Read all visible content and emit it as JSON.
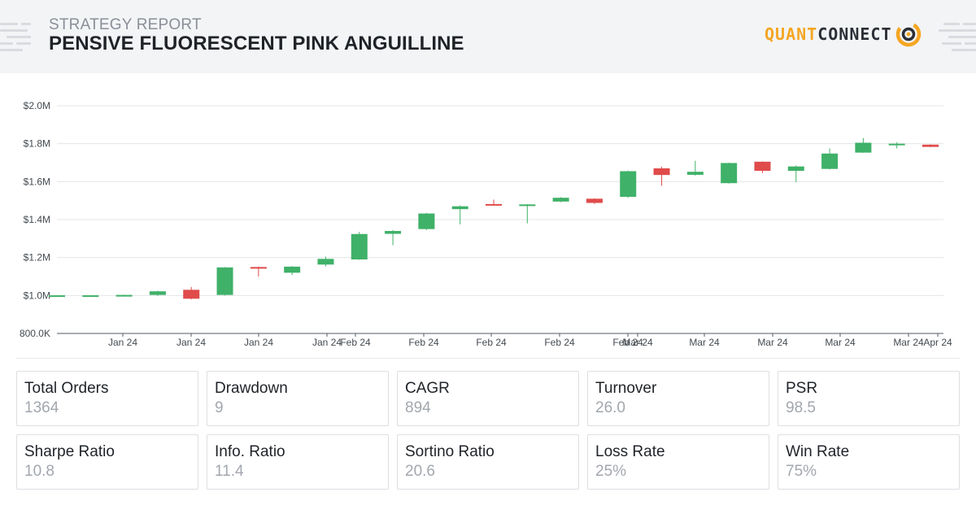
{
  "header": {
    "kicker": "STRATEGY REPORT",
    "title": "PENSIVE FLUORESCENT PINK ANGUILLINE",
    "logo_quant": "QUANT",
    "logo_connect": "CONNECT"
  },
  "colors": {
    "up": "#3fb168",
    "down": "#e04b4b",
    "grid": "#e3e5e8",
    "axis": "#555a60",
    "logo_orange": "#f5a623"
  },
  "chart_data": {
    "type": "candlestick",
    "title": "",
    "xlabel": "",
    "ylabel": "",
    "ylim": [
      800000,
      2000000
    ],
    "y_ticks": [
      {
        "v": 2000000,
        "label": "$2.0M"
      },
      {
        "v": 1800000,
        "label": "$1.8M"
      },
      {
        "v": 1600000,
        "label": "$1.6M"
      },
      {
        "v": 1400000,
        "label": "$1.4M"
      },
      {
        "v": 1200000,
        "label": "$1.2M"
      },
      {
        "v": 1000000,
        "label": "$1.0M"
      },
      {
        "v": 800000,
        "label": "800.0K"
      }
    ],
    "x_tick_labels": [
      "Jan 24",
      "Jan 24",
      "Jan 24",
      "Jan 24",
      "Feb 24",
      "Feb 24",
      "Feb 24",
      "Feb 24",
      "Feb 24",
      "Mar 24",
      "Mar 24",
      "Mar 24",
      "Mar 24",
      "Mar 24",
      "Apr 24"
    ],
    "candles": [
      {
        "open": 1000000,
        "high": 1002000,
        "low": 998000,
        "close": 1001000
      },
      {
        "open": 1000000,
        "high": 1002000,
        "low": 998000,
        "close": 1001000
      },
      {
        "open": 1001000,
        "high": 1004000,
        "low": 999000,
        "close": 1003000
      },
      {
        "open": 1003000,
        "high": 1025000,
        "low": 998000,
        "close": 1022000
      },
      {
        "open": 1030000,
        "high": 1045000,
        "low": 980000,
        "close": 983000
      },
      {
        "open": 1003000,
        "high": 1150000,
        "low": 1000000,
        "close": 1148000
      },
      {
        "open": 1150000,
        "high": 1152000,
        "low": 1100000,
        "close": 1145000
      },
      {
        "open": 1120000,
        "high": 1155000,
        "low": 1108000,
        "close": 1152000
      },
      {
        "open": 1163000,
        "high": 1205000,
        "low": 1153000,
        "close": 1193000
      },
      {
        "open": 1190000,
        "high": 1335000,
        "low": 1188000,
        "close": 1324000
      },
      {
        "open": 1325000,
        "high": 1345000,
        "low": 1265000,
        "close": 1340000
      },
      {
        "open": 1350000,
        "high": 1435000,
        "low": 1345000,
        "close": 1432000
      },
      {
        "open": 1455000,
        "high": 1475000,
        "low": 1375000,
        "close": 1470000
      },
      {
        "open": 1482000,
        "high": 1505000,
        "low": 1473000,
        "close": 1475000
      },
      {
        "open": 1474000,
        "high": 1482000,
        "low": 1380000,
        "close": 1480000
      },
      {
        "open": 1495000,
        "high": 1518000,
        "low": 1492000,
        "close": 1515000
      },
      {
        "open": 1510000,
        "high": 1512000,
        "low": 1482000,
        "close": 1488000
      },
      {
        "open": 1520000,
        "high": 1658000,
        "low": 1515000,
        "close": 1655000
      },
      {
        "open": 1670000,
        "high": 1678000,
        "low": 1578000,
        "close": 1635000
      },
      {
        "open": 1636000,
        "high": 1710000,
        "low": 1632000,
        "close": 1652000
      },
      {
        "open": 1592000,
        "high": 1700000,
        "low": 1590000,
        "close": 1698000
      },
      {
        "open": 1705000,
        "high": 1707000,
        "low": 1645000,
        "close": 1657000
      },
      {
        "open": 1657000,
        "high": 1685000,
        "low": 1598000,
        "close": 1680000
      },
      {
        "open": 1667000,
        "high": 1775000,
        "low": 1664000,
        "close": 1748000
      },
      {
        "open": 1753000,
        "high": 1830000,
        "low": 1752000,
        "close": 1805000
      },
      {
        "open": 1795000,
        "high": 1808000,
        "low": 1775000,
        "close": 1800000
      },
      {
        "open": 1795000,
        "high": 1797000,
        "low": 1782000,
        "close": 1783000
      }
    ]
  },
  "stats": [
    {
      "label": "Total Orders",
      "value": "1364"
    },
    {
      "label": "Drawdown",
      "value": "9"
    },
    {
      "label": "CAGR",
      "value": "894"
    },
    {
      "label": "Turnover",
      "value": "26.0"
    },
    {
      "label": "PSR",
      "value": "98.5"
    },
    {
      "label": "Sharpe Ratio",
      "value": "10.8"
    },
    {
      "label": "Info. Ratio",
      "value": "11.4"
    },
    {
      "label": "Sortino Ratio",
      "value": "20.6"
    },
    {
      "label": "Loss Rate",
      "value": "25%"
    },
    {
      "label": "Win Rate",
      "value": "75%"
    }
  ]
}
